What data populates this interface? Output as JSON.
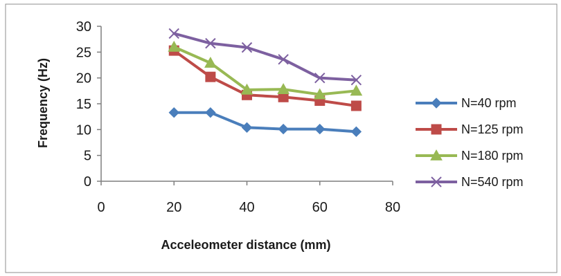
{
  "chart_data": {
    "type": "line",
    "title": "",
    "xlabel": "Acceleometer distance (mm)",
    "ylabel": "Frequency (Hz)",
    "xlim": [
      0,
      80
    ],
    "ylim": [
      0,
      30
    ],
    "xticks": [
      0,
      20,
      40,
      60,
      80
    ],
    "yticks": [
      0,
      5,
      10,
      15,
      20,
      25,
      30
    ],
    "grid": false,
    "legend_position": "right",
    "x": [
      20,
      30,
      40,
      50,
      60,
      70
    ],
    "series": [
      {
        "name": "N=40 rpm",
        "values": [
          13.3,
          13.3,
          10.4,
          10.1,
          10.1,
          9.6
        ],
        "color": "#4a7ebb",
        "marker": "diamond"
      },
      {
        "name": "N=125 rpm",
        "values": [
          25.3,
          20.2,
          16.7,
          16.3,
          15.6,
          14.6
        ],
        "color": "#be4b48",
        "marker": "square"
      },
      {
        "name": "N=180 rpm",
        "values": [
          26.0,
          22.9,
          17.7,
          17.8,
          16.8,
          17.5
        ],
        "color": "#98b954",
        "marker": "triangle"
      },
      {
        "name": "N=540 rpm",
        "values": [
          28.6,
          26.7,
          25.9,
          23.6,
          20.0,
          19.6
        ],
        "color": "#7d60a0",
        "marker": "x"
      }
    ]
  }
}
